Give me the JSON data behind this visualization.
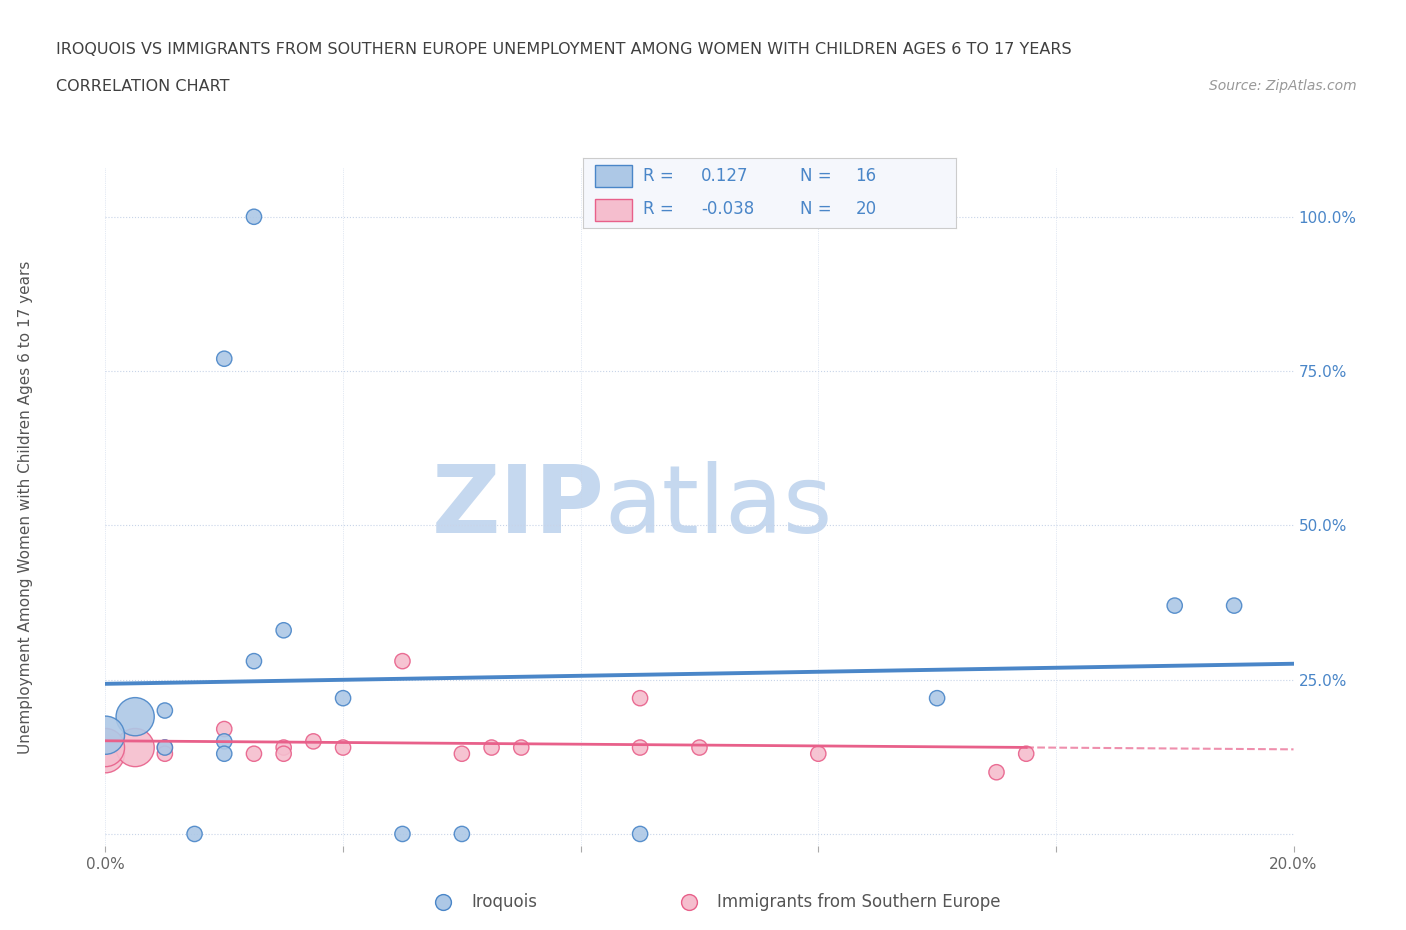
{
  "title_line1": "IROQUOIS VS IMMIGRANTS FROM SOUTHERN EUROPE UNEMPLOYMENT AMONG WOMEN WITH CHILDREN AGES 6 TO 17 YEARS",
  "title_line2": "CORRELATION CHART",
  "source_text": "Source: ZipAtlas.com",
  "ylabel": "Unemployment Among Women with Children Ages 6 to 17 years",
  "xlim": [
    0.0,
    0.2
  ],
  "ylim": [
    -0.02,
    1.08
  ],
  "yticks": [
    0.0,
    0.25,
    0.5,
    0.75,
    1.0
  ],
  "ytick_labels": [
    "",
    "25.0%",
    "50.0%",
    "75.0%",
    "100.0%"
  ],
  "xticks": [
    0.0,
    0.04,
    0.08,
    0.12,
    0.16,
    0.2
  ],
  "xtick_labels": [
    "0.0%",
    "",
    "",
    "",
    "",
    "20.0%"
  ],
  "watermark_zip": "ZIP",
  "watermark_atlas": "atlas",
  "iroquois_R": 0.127,
  "iroquois_N": 16,
  "southern_europe_R": -0.038,
  "southern_europe_N": 20,
  "iroquois_color": "#adc8e6",
  "southern_europe_color": "#f5bece",
  "iroquois_line_color": "#4a86c8",
  "southern_europe_line_color": "#e8608a",
  "iroquois_x": [
    0.005,
    0.01,
    0.01,
    0.015,
    0.02,
    0.02,
    0.025,
    0.03,
    0.04,
    0.05,
    0.06,
    0.09,
    0.14,
    0.18,
    0.19
  ],
  "iroquois_y": [
    0.19,
    0.2,
    0.14,
    0.0,
    0.15,
    0.13,
    0.28,
    0.33,
    0.22,
    0.0,
    0.0,
    0.0,
    0.22,
    0.37,
    0.37
  ],
  "iroquois_outlier_x": [
    0.025
  ],
  "iroquois_outlier_y": [
    1.0
  ],
  "iroquois_high_x": [
    0.02
  ],
  "iroquois_high_y": [
    0.77
  ],
  "southern_europe_x": [
    0.0,
    0.005,
    0.01,
    0.01,
    0.02,
    0.025,
    0.03,
    0.03,
    0.035,
    0.04,
    0.05,
    0.06,
    0.065,
    0.07,
    0.09,
    0.09,
    0.1,
    0.12,
    0.15,
    0.155
  ],
  "southern_europe_y": [
    0.13,
    0.14,
    0.14,
    0.13,
    0.17,
    0.13,
    0.14,
    0.13,
    0.15,
    0.14,
    0.28,
    0.13,
    0.14,
    0.14,
    0.22,
    0.14,
    0.14,
    0.13,
    0.1,
    0.13
  ],
  "iroquois_large_x": [
    0.0
  ],
  "iroquois_large_y": [
    0.16
  ],
  "southern_europe_large_x": [
    0.0
  ],
  "southern_europe_large_y": [
    0.14
  ],
  "background_color": "#ffffff",
  "grid_color": "#c8d4e8",
  "legend_R_color": "#4a86c8",
  "title_color": "#404040",
  "marker_size": 11
}
